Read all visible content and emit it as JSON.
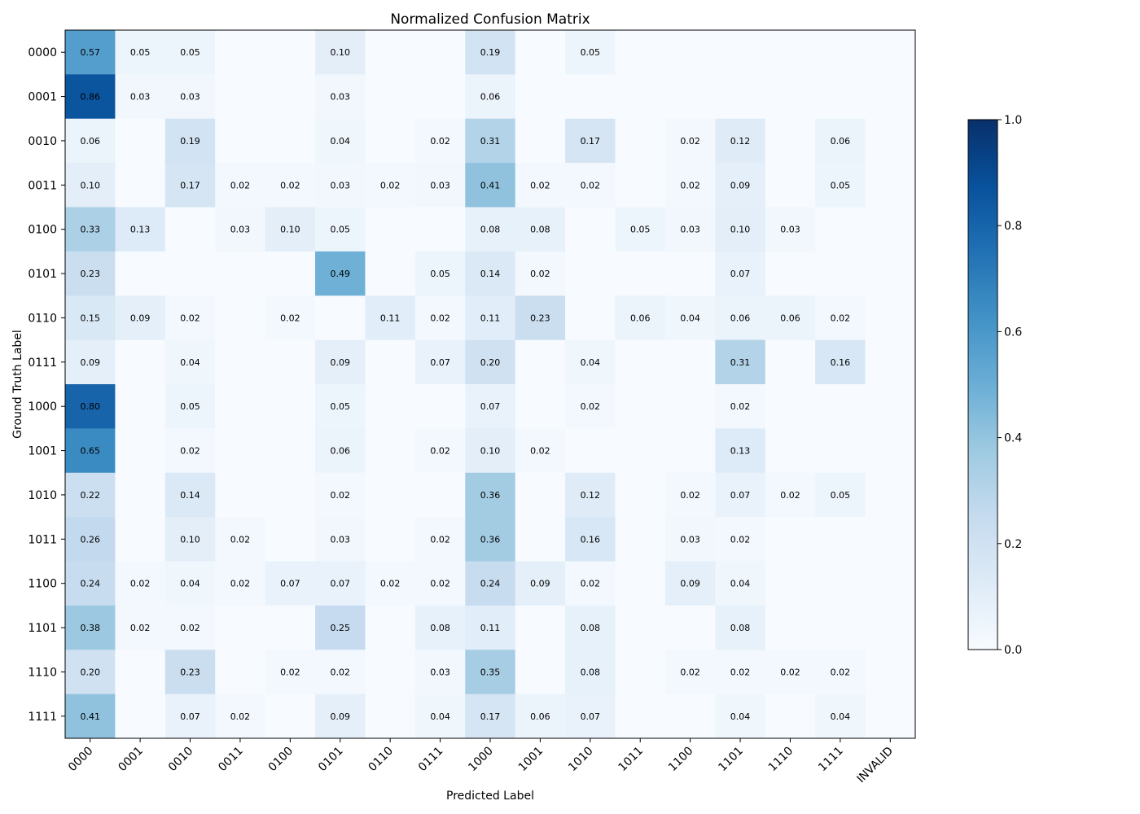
{
  "chart_data": {
    "type": "heatmap",
    "title": "Normalized Confusion Matrix",
    "xlabel": "Predicted Label",
    "ylabel": "Ground Truth Label",
    "row_labels": [
      "0000",
      "0001",
      "0010",
      "0011",
      "0100",
      "0101",
      "0110",
      "0111",
      "1000",
      "1001",
      "1010",
      "1011",
      "1100",
      "1101",
      "1110",
      "1111"
    ],
    "col_labels": [
      "0000",
      "0001",
      "0010",
      "0011",
      "0100",
      "0101",
      "0110",
      "0111",
      "1000",
      "1001",
      "1010",
      "1011",
      "1100",
      "1101",
      "1110",
      "1111",
      "INVALID"
    ],
    "values": [
      [
        0.57,
        0.05,
        0.05,
        0,
        0,
        0.1,
        0,
        0,
        0.19,
        0,
        0.05,
        0,
        0,
        0,
        0,
        0,
        0
      ],
      [
        0.86,
        0.03,
        0.03,
        0,
        0,
        0.03,
        0,
        0,
        0.06,
        0,
        0,
        0,
        0,
        0,
        0,
        0,
        0
      ],
      [
        0.06,
        0,
        0.19,
        0,
        0,
        0.04,
        0,
        0.02,
        0.31,
        0,
        0.17,
        0,
        0.02,
        0.12,
        0,
        0.06,
        0
      ],
      [
        0.1,
        0,
        0.17,
        0.02,
        0.02,
        0.03,
        0.02,
        0.03,
        0.41,
        0.02,
        0.02,
        0,
        0.02,
        0.09,
        0,
        0.05,
        0
      ],
      [
        0.33,
        0.13,
        0,
        0.03,
        0.1,
        0.05,
        0,
        0,
        0.08,
        0.08,
        0,
        0.05,
        0.03,
        0.1,
        0.03,
        0,
        0
      ],
      [
        0.23,
        0,
        0,
        0,
        0,
        0.49,
        0,
        0.05,
        0.14,
        0.02,
        0,
        0,
        0,
        0.07,
        0,
        0,
        0
      ],
      [
        0.15,
        0.09,
        0.02,
        0,
        0.02,
        0,
        0.11,
        0.02,
        0.11,
        0.23,
        0,
        0.06,
        0.04,
        0.06,
        0.06,
        0.02,
        0
      ],
      [
        0.09,
        0,
        0.04,
        0,
        0,
        0.09,
        0,
        0.07,
        0.2,
        0,
        0.04,
        0,
        0,
        0.31,
        0,
        0.16,
        0
      ],
      [
        0.8,
        0,
        0.05,
        0,
        0,
        0.05,
        0,
        0,
        0.07,
        0,
        0.02,
        0,
        0,
        0.02,
        0,
        0,
        0
      ],
      [
        0.65,
        0,
        0.02,
        0,
        0,
        0.06,
        0,
        0.02,
        0.1,
        0.02,
        0,
        0,
        0,
        0.13,
        0,
        0,
        0
      ],
      [
        0.22,
        0,
        0.14,
        0,
        0,
        0.02,
        0,
        0,
        0.36,
        0,
        0.12,
        0,
        0.02,
        0.07,
        0.02,
        0.05,
        0
      ],
      [
        0.26,
        0,
        0.1,
        0.02,
        0,
        0.03,
        0,
        0.02,
        0.36,
        0,
        0.16,
        0,
        0.03,
        0.02,
        0,
        0,
        0
      ],
      [
        0.24,
        0.02,
        0.04,
        0.02,
        0.07,
        0.07,
        0.02,
        0.02,
        0.24,
        0.09,
        0.02,
        0,
        0.09,
        0.04,
        0,
        0,
        0
      ],
      [
        0.38,
        0.02,
        0.02,
        0,
        0,
        0.25,
        0,
        0.08,
        0.11,
        0,
        0.08,
        0,
        0,
        0.08,
        0,
        0,
        0
      ],
      [
        0.2,
        0,
        0.23,
        0,
        0.02,
        0.02,
        0,
        0.03,
        0.35,
        0,
        0.08,
        0,
        0.02,
        0.02,
        0.02,
        0.02,
        0
      ],
      [
        0.41,
        0,
        0.07,
        0.02,
        0,
        0.09,
        0,
        0.04,
        0.17,
        0.06,
        0.07,
        0,
        0,
        0.04,
        0,
        0.04,
        0
      ]
    ],
    "value_format": "2 decimals; zero cells unlabeled",
    "colormap": "Blues",
    "colorbar": {
      "range": [
        0.0,
        1.0
      ],
      "ticks": [
        0.0,
        0.2,
        0.4,
        0.6,
        0.8,
        1.0
      ],
      "tick_labels": [
        "0.0",
        "0.2",
        "0.4",
        "0.6",
        "0.8",
        "1.0"
      ]
    },
    "grid": false
  }
}
